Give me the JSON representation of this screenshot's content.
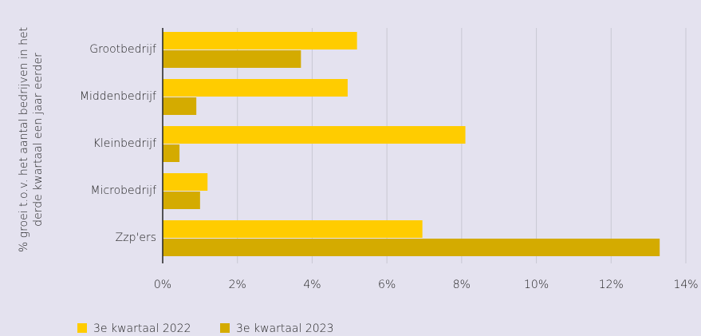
{
  "chart_data": {
    "type": "hbar",
    "ylabel": [
      "% groei t.o.v. het aantal bedrijven in het",
      "derde kwartaal een jaar eerder"
    ],
    "categories": [
      "Grootbedrijf",
      "Middenbedrijf",
      "Kleinbedrijf",
      "Microbedrijf",
      "Zzp'ers"
    ],
    "series": [
      {
        "name": "3e kwartaal 2022",
        "color": "#ffcc00",
        "values": [
          5.2,
          4.95,
          8.1,
          1.2,
          6.95
        ]
      },
      {
        "name": "3e kwartaal 2023",
        "color": "#d4ab00",
        "values": [
          3.7,
          0.9,
          0.45,
          1.0,
          13.3
        ]
      }
    ],
    "xlim": [
      0,
      14
    ],
    "xticks": [
      {
        "value": 0,
        "label": "0%"
      },
      {
        "value": 2,
        "label": "2%"
      },
      {
        "value": 4,
        "label": "4%"
      },
      {
        "value": 6,
        "label": "6%"
      },
      {
        "value": 8,
        "label": "8%"
      },
      {
        "value": 10,
        "label": "10%"
      },
      {
        "value": 12,
        "label": "12%"
      },
      {
        "value": 14,
        "label": "14%"
      }
    ],
    "grid": true,
    "legend": "bottom-left"
  }
}
